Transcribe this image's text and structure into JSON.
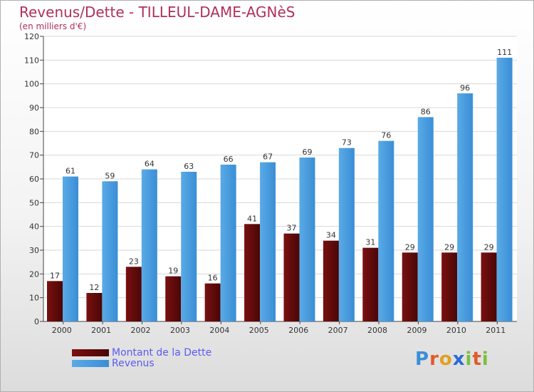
{
  "chart_data": {
    "type": "bar",
    "title": "Revenus/Dette - TILLEUL-DAME-AGNèS",
    "subtitle": "(en milliers d'€)",
    "categories": [
      "2000",
      "2001",
      "2002",
      "2003",
      "2004",
      "2005",
      "2006",
      "2007",
      "2008",
      "2009",
      "2010",
      "2011"
    ],
    "series": [
      {
        "name": "Montant de la Dette",
        "values": [
          17,
          12,
          23,
          19,
          16,
          41,
          37,
          34,
          31,
          29,
          29,
          29
        ],
        "color": "#7a1010",
        "color_dark": "#4a0606"
      },
      {
        "name": "Revenus",
        "values": [
          61,
          59,
          64,
          63,
          66,
          67,
          69,
          73,
          76,
          86,
          96,
          111
        ],
        "color": "#5aaae6",
        "color_dark": "#3a8ed6"
      }
    ],
    "ylim": [
      0,
      120
    ],
    "yticks": [
      0,
      10,
      20,
      30,
      40,
      50,
      60,
      70,
      80,
      90,
      100,
      110,
      120
    ],
    "grid": true,
    "legend_position": "bottom-left"
  },
  "logo": {
    "letters": [
      "P",
      "r",
      "o",
      "x",
      "i",
      "t",
      "i"
    ],
    "colors": [
      "#3a8ed6",
      "#e05a2a",
      "#e0a020",
      "#2a6ad6",
      "#7ac040",
      "#e05a2a",
      "#7ac040"
    ]
  }
}
